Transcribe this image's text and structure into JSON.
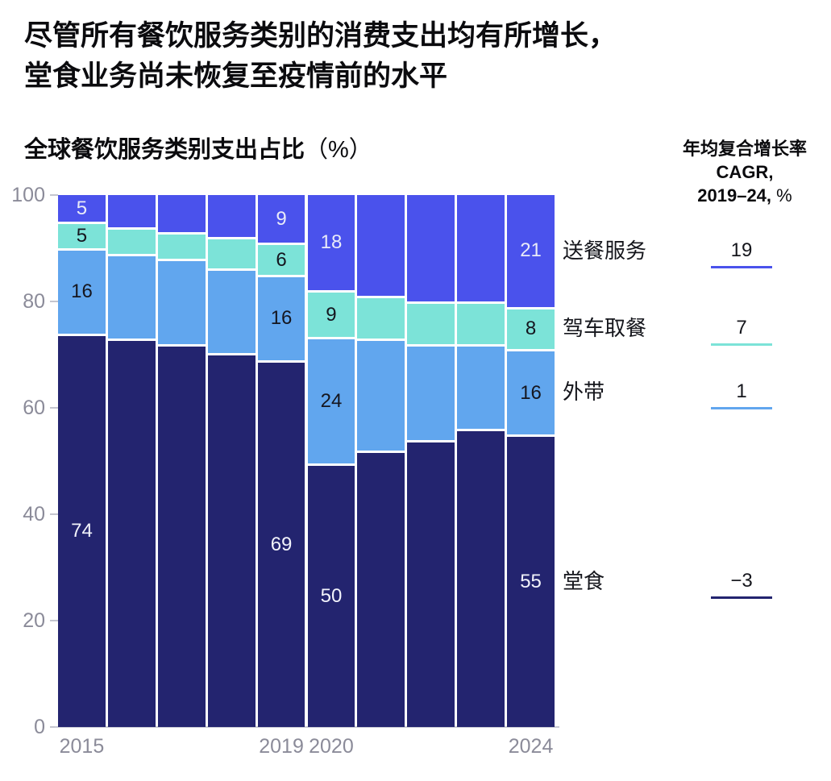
{
  "page": {
    "title_line1": "尽管所有餐饮服务类别的消费支出均有所增长，",
    "title_line2": "堂食业务尚未恢复至疫情前的水平",
    "subtitle": "全球餐饮服务类别支出占比",
    "subtitle_unit": "（%）"
  },
  "cagr_panel": {
    "header_line1": "年均复合增长率",
    "header_line2": "CAGR,",
    "header_line3": "2019–24,",
    "header_line3_unit": "%"
  },
  "chart_data": {
    "type": "bar",
    "stacked": true,
    "title": "全球餐饮服务类别支出占比（%）",
    "x": [
      "2015",
      "2016",
      "2017",
      "2018",
      "2019",
      "2020",
      "2021",
      "2022",
      "2023",
      "2024"
    ],
    "x_ticks_shown": [
      "2015",
      "2019",
      "2020",
      "2024"
    ],
    "y_ticks": [
      100,
      80,
      60,
      40,
      20,
      0
    ],
    "ylim": [
      0,
      100
    ],
    "grid": false,
    "legend_position": "right",
    "series": [
      {
        "name": "堂食",
        "slug": "dine-in",
        "color": "#23246f",
        "label_color": "#f2f3fb",
        "cagr": "−3",
        "values": [
          74,
          73,
          72,
          71,
          69,
          50,
          52,
          54,
          56,
          55
        ]
      },
      {
        "name": "外带",
        "slug": "takeaway",
        "color": "#61a6ee",
        "label_color": "#15161f",
        "cagr": "1",
        "values": [
          16,
          16,
          16,
          16,
          16,
          24,
          21,
          18,
          16,
          16
        ]
      },
      {
        "name": "驾车取餐",
        "slug": "drive-thru",
        "color": "#7ce3d8",
        "label_color": "#15161f",
        "cagr": "7",
        "values": [
          5,
          5,
          5,
          6,
          6,
          9,
          8,
          8,
          8,
          8
        ]
      },
      {
        "name": "送餐服务",
        "slug": "delivery",
        "color": "#4a52ec",
        "label_color": "#e9ebf8",
        "cagr": "19",
        "values": [
          5,
          6,
          7,
          8,
          9,
          18,
          19,
          20,
          20,
          21
        ]
      }
    ],
    "labeled_bar_indices": [
      0,
      4,
      5,
      9
    ],
    "axis_label_color": "#8b8b99"
  }
}
